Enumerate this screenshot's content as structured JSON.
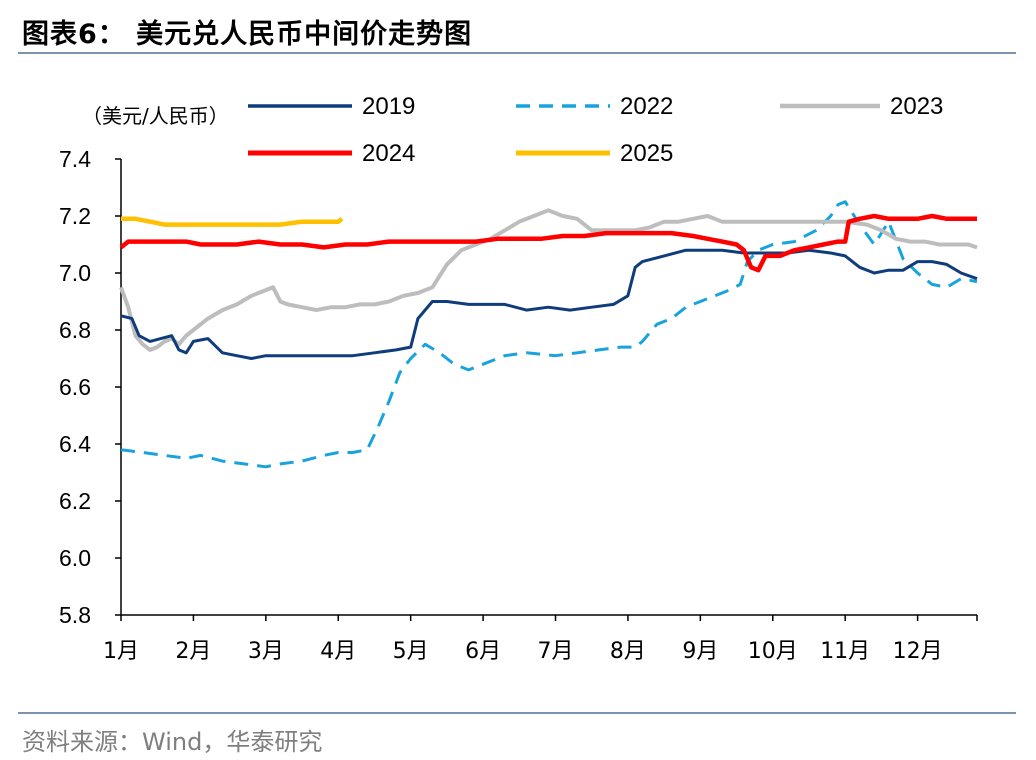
{
  "header": {
    "title": "图表6：  美元兑人民币中间价走势图"
  },
  "footer": {
    "source": "资料来源：Wind，华泰研究"
  },
  "chart_data": {
    "type": "line",
    "unit_label": "（美元/人民币）",
    "x_tick_labels": [
      "1月",
      "2月",
      "3月",
      "4月",
      "5月",
      "6月",
      "7月",
      "8月",
      "9月",
      "10月",
      "11月",
      "12月"
    ],
    "x_domain": [
      1,
      12.82
    ],
    "ylim": [
      5.8,
      7.4
    ],
    "y_ticks": [
      5.8,
      6.0,
      6.2,
      6.4,
      6.6,
      6.8,
      7.0,
      7.2,
      7.4
    ],
    "y_tick_labels": [
      "5.8",
      "6.0",
      "6.2",
      "6.4",
      "6.6",
      "6.8",
      "7.0",
      "7.2",
      "7.4"
    ],
    "legend_position": "top",
    "series": [
      {
        "name": "2019",
        "color": "#0f3c7a",
        "dash": "",
        "width": 3,
        "x": [
          1.0,
          1.15,
          1.25,
          1.4,
          1.55,
          1.7,
          1.8,
          1.9,
          2.0,
          2.2,
          2.4,
          2.6,
          2.8,
          3.0,
          3.3,
          3.6,
          3.9,
          4.2,
          4.5,
          4.8,
          5.0,
          5.1,
          5.3,
          5.5,
          5.8,
          6.0,
          6.3,
          6.6,
          6.9,
          7.2,
          7.5,
          7.8,
          8.0,
          8.1,
          8.2,
          8.5,
          8.8,
          9.0,
          9.3,
          9.6,
          9.9,
          10.2,
          10.5,
          10.8,
          11.0,
          11.2,
          11.4,
          11.6,
          11.8,
          12.0,
          12.2,
          12.4,
          12.6,
          12.82
        ],
        "y": [
          6.85,
          6.84,
          6.78,
          6.76,
          6.77,
          6.78,
          6.73,
          6.72,
          6.76,
          6.77,
          6.72,
          6.71,
          6.7,
          6.71,
          6.71,
          6.71,
          6.71,
          6.71,
          6.72,
          6.73,
          6.74,
          6.84,
          6.9,
          6.9,
          6.89,
          6.89,
          6.89,
          6.87,
          6.88,
          6.87,
          6.88,
          6.89,
          6.92,
          7.02,
          7.04,
          7.06,
          7.08,
          7.08,
          7.08,
          7.07,
          7.07,
          7.07,
          7.08,
          7.07,
          7.06,
          7.02,
          7.0,
          7.01,
          7.01,
          7.04,
          7.04,
          7.03,
          7.0,
          6.98
        ]
      },
      {
        "name": "2022",
        "color": "#19a3dd",
        "dash": "14,9",
        "width": 3,
        "x": [
          1.0,
          1.3,
          1.6,
          1.9,
          2.1,
          2.4,
          2.7,
          3.0,
          3.2,
          3.5,
          3.8,
          4.0,
          4.2,
          4.4,
          4.55,
          4.7,
          4.85,
          5.0,
          5.2,
          5.4,
          5.6,
          5.8,
          6.0,
          6.3,
          6.6,
          7.0,
          7.3,
          7.6,
          7.9,
          8.1,
          8.2,
          8.4,
          8.6,
          8.8,
          9.0,
          9.2,
          9.4,
          9.55,
          9.65,
          9.8,
          10.0,
          10.3,
          10.6,
          10.8,
          10.9,
          11.0,
          11.2,
          11.4,
          11.6,
          11.8,
          12.0,
          12.2,
          12.4,
          12.6,
          12.82
        ],
        "y": [
          6.38,
          6.37,
          6.36,
          6.35,
          6.36,
          6.34,
          6.33,
          6.32,
          6.33,
          6.34,
          6.36,
          6.37,
          6.37,
          6.38,
          6.46,
          6.55,
          6.65,
          6.7,
          6.75,
          6.72,
          6.68,
          6.66,
          6.68,
          6.71,
          6.72,
          6.71,
          6.72,
          6.73,
          6.74,
          6.74,
          6.76,
          6.82,
          6.84,
          6.88,
          6.9,
          6.92,
          6.94,
          6.96,
          7.04,
          7.08,
          7.1,
          7.11,
          7.15,
          7.2,
          7.24,
          7.25,
          7.17,
          7.1,
          7.18,
          7.05,
          7.0,
          6.96,
          6.95,
          6.98,
          6.97
        ]
      },
      {
        "name": "2023",
        "color": "#bdbdbd",
        "dash": "",
        "width": 4,
        "x": [
          1.0,
          1.1,
          1.2,
          1.3,
          1.4,
          1.5,
          1.6,
          1.7,
          1.8,
          1.9,
          2.0,
          2.2,
          2.4,
          2.6,
          2.8,
          3.0,
          3.1,
          3.2,
          3.3,
          3.5,
          3.7,
          3.9,
          4.1,
          4.3,
          4.5,
          4.7,
          4.9,
          5.1,
          5.3,
          5.5,
          5.7,
          5.9,
          6.1,
          6.3,
          6.5,
          6.7,
          6.9,
          7.1,
          7.3,
          7.5,
          7.7,
          7.9,
          8.1,
          8.3,
          8.5,
          8.7,
          8.9,
          9.1,
          9.3,
          9.5,
          9.8,
          10.1,
          10.4,
          10.7,
          11.0,
          11.3,
          11.5,
          11.7,
          11.9,
          12.1,
          12.3,
          12.5,
          12.7,
          12.82
        ],
        "y": [
          6.95,
          6.88,
          6.78,
          6.75,
          6.73,
          6.74,
          6.76,
          6.77,
          6.75,
          6.78,
          6.8,
          6.84,
          6.87,
          6.89,
          6.92,
          6.94,
          6.95,
          6.9,
          6.89,
          6.88,
          6.87,
          6.88,
          6.88,
          6.89,
          6.89,
          6.9,
          6.92,
          6.93,
          6.95,
          7.03,
          7.08,
          7.1,
          7.12,
          7.15,
          7.18,
          7.2,
          7.22,
          7.2,
          7.19,
          7.15,
          7.15,
          7.15,
          7.15,
          7.16,
          7.18,
          7.18,
          7.19,
          7.2,
          7.18,
          7.18,
          7.18,
          7.18,
          7.18,
          7.18,
          7.18,
          7.17,
          7.15,
          7.12,
          7.11,
          7.11,
          7.1,
          7.1,
          7.1,
          7.09
        ]
      },
      {
        "name": "2024",
        "color": "#ff0000",
        "dash": "",
        "width": 4.5,
        "x": [
          1.0,
          1.1,
          1.3,
          1.5,
          1.7,
          1.9,
          2.1,
          2.3,
          2.6,
          2.9,
          3.2,
          3.5,
          3.8,
          4.1,
          4.4,
          4.7,
          5.0,
          5.3,
          5.6,
          5.9,
          6.2,
          6.5,
          6.8,
          7.1,
          7.4,
          7.7,
          8.0,
          8.3,
          8.6,
          8.9,
          9.1,
          9.3,
          9.5,
          9.6,
          9.7,
          9.8,
          9.9,
          10.1,
          10.3,
          10.5,
          10.7,
          10.9,
          11.0,
          11.05,
          11.2,
          11.4,
          11.6,
          11.8,
          12.0,
          12.2,
          12.4,
          12.6,
          12.82
        ],
        "y": [
          7.09,
          7.11,
          7.11,
          7.11,
          7.11,
          7.11,
          7.1,
          7.1,
          7.1,
          7.11,
          7.1,
          7.1,
          7.09,
          7.1,
          7.1,
          7.11,
          7.11,
          7.11,
          7.11,
          7.11,
          7.12,
          7.12,
          7.12,
          7.13,
          7.13,
          7.14,
          7.14,
          7.14,
          7.14,
          7.13,
          7.12,
          7.11,
          7.1,
          7.08,
          7.02,
          7.01,
          7.06,
          7.06,
          7.08,
          7.09,
          7.1,
          7.11,
          7.11,
          7.18,
          7.19,
          7.2,
          7.19,
          7.19,
          7.19,
          7.2,
          7.19,
          7.19,
          7.19
        ]
      },
      {
        "name": "2025",
        "color": "#ffc000",
        "dash": "",
        "width": 4.5,
        "x": [
          1.0,
          1.2,
          1.4,
          1.6,
          1.8,
          2.0,
          2.3,
          2.6,
          2.9,
          3.2,
          3.5,
          3.8,
          4.0,
          4.05
        ],
        "y": [
          7.19,
          7.19,
          7.18,
          7.17,
          7.17,
          7.17,
          7.17,
          7.17,
          7.17,
          7.17,
          7.18,
          7.18,
          7.18,
          7.19
        ]
      }
    ]
  }
}
